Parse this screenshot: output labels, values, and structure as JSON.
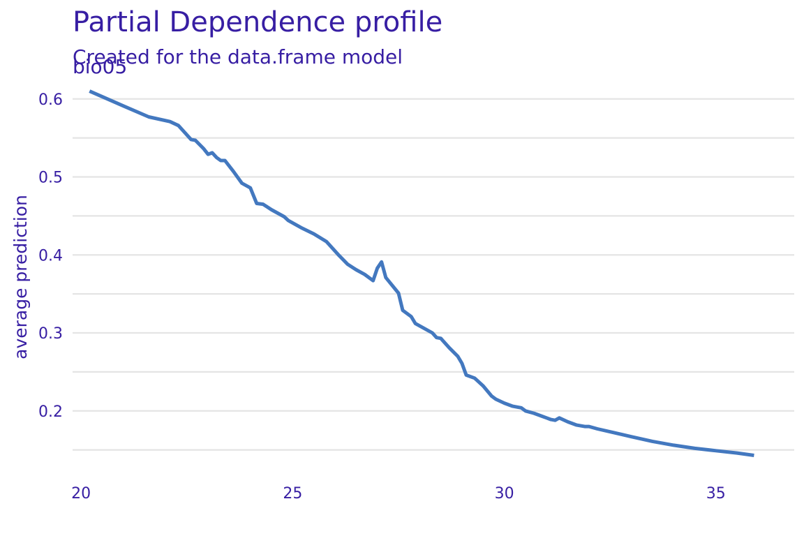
{
  "header": {
    "title": "Partial Dependence profile",
    "subtitle": "Created for the data.frame model",
    "panel_label": "bio05"
  },
  "colors": {
    "text": "#371ea3",
    "line": "#4378bf",
    "grid": "#e4e4e4"
  },
  "chart_data": {
    "type": "line",
    "title": "Partial Dependence profile",
    "subtitle": "Created for the data.frame model",
    "panel": "bio05",
    "xlabel": "",
    "ylabel": "average prediction",
    "xlim": [
      19.8,
      36.85
    ],
    "ylim": [
      0.13,
      0.615
    ],
    "x_ticks": [
      20,
      25,
      30,
      35
    ],
    "y_ticks": [
      0.2,
      0.3,
      0.4,
      0.5,
      0.6
    ],
    "y_minor_ticks": [
      0.15,
      0.25,
      0.35,
      0.45,
      0.55
    ],
    "grid": "horizontal",
    "legend": "none",
    "series": [
      {
        "x": [
          20.2,
          21.0,
          21.6,
          22.1,
          22.3,
          22.6,
          22.7,
          22.9,
          23.0,
          23.1,
          23.2,
          23.3,
          23.4,
          23.6,
          23.8,
          24.0,
          24.15,
          24.3,
          24.5,
          24.8,
          24.9,
          25.2,
          25.5,
          25.8,
          26.1,
          26.3,
          26.5,
          26.7,
          26.9,
          27.0,
          27.1,
          27.2,
          27.5,
          27.6,
          27.8,
          27.9,
          28.1,
          28.3,
          28.4,
          28.5,
          28.7,
          28.9,
          29.0,
          29.1,
          29.3,
          29.5,
          29.7,
          29.8,
          30.0,
          30.2,
          30.4,
          30.5,
          30.7,
          30.9,
          31.0,
          31.1,
          31.2,
          31.3,
          31.5,
          31.7,
          31.9,
          32.0,
          32.2,
          32.6,
          33.0,
          33.5,
          34.0,
          34.5,
          35.0,
          35.5,
          35.9
        ],
        "y": [
          0.61,
          0.591,
          0.577,
          0.571,
          0.566,
          0.548,
          0.547,
          0.536,
          0.529,
          0.531,
          0.525,
          0.521,
          0.521,
          0.507,
          0.492,
          0.486,
          0.466,
          0.465,
          0.458,
          0.449,
          0.444,
          0.435,
          0.427,
          0.417,
          0.399,
          0.388,
          0.381,
          0.375,
          0.367,
          0.383,
          0.391,
          0.371,
          0.351,
          0.329,
          0.321,
          0.312,
          0.306,
          0.3,
          0.294,
          0.293,
          0.281,
          0.27,
          0.261,
          0.246,
          0.242,
          0.232,
          0.219,
          0.215,
          0.21,
          0.206,
          0.204,
          0.2,
          0.197,
          0.193,
          0.191,
          0.189,
          0.188,
          0.191,
          0.186,
          0.182,
          0.18,
          0.18,
          0.177,
          0.172,
          0.167,
          0.161,
          0.156,
          0.152,
          0.149,
          0.146,
          0.143
        ]
      }
    ]
  }
}
